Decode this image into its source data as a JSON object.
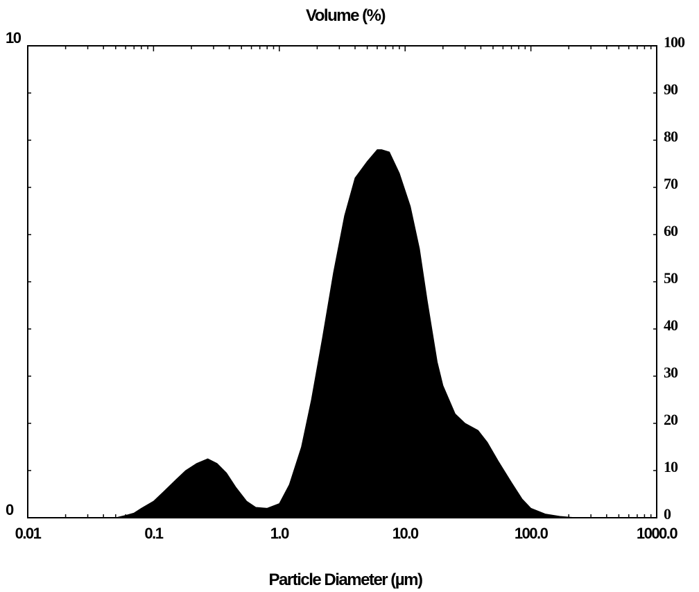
{
  "chart_data": {
    "type": "area",
    "title": "Volume (%)",
    "xlabel": "Particle Diameter (µm)",
    "ylabel": "",
    "x_scale": "log",
    "xlim": [
      0.01,
      1000
    ],
    "ylim": [
      0,
      10
    ],
    "y2lim": [
      0,
      100
    ],
    "grid": false,
    "x_tick_labels": [
      "0.01",
      "0.1",
      "1.0",
      "10.0",
      "100.0",
      "1000.0"
    ],
    "x_tick_values": [
      0.01,
      0.1,
      1,
      10,
      100,
      1000
    ],
    "y_left_labels": [
      "10",
      "0"
    ],
    "y_left_values": [
      10,
      0
    ],
    "y_right_labels": [
      "100",
      "90",
      "80",
      "70",
      "60",
      "50",
      "40",
      "30",
      "20",
      "10",
      "0"
    ],
    "y_right_values": [
      100,
      90,
      80,
      70,
      60,
      50,
      40,
      30,
      20,
      10,
      0
    ],
    "series": [
      {
        "x": [
          0.05,
          0.06,
          0.07,
          0.08,
          0.1,
          0.12,
          0.15,
          0.18,
          0.22,
          0.27,
          0.32,
          0.38,
          0.45,
          0.55,
          0.65,
          0.8,
          1.0,
          1.2,
          1.5,
          1.8,
          2.2,
          2.7,
          3.3,
          4.0,
          5.0,
          6.0,
          6.5,
          7.5,
          9.0,
          11.0,
          13.0,
          15.0,
          18.0,
          20.0,
          25.0,
          30.0,
          38.0,
          45.0,
          55.0,
          70.0,
          85.0,
          100.0,
          130.0,
          170.0,
          230.0,
          300.0
        ],
        "values": [
          0.0,
          0.05,
          0.1,
          0.2,
          0.35,
          0.55,
          0.8,
          1.0,
          1.15,
          1.25,
          1.15,
          0.95,
          0.65,
          0.35,
          0.22,
          0.2,
          0.3,
          0.7,
          1.5,
          2.5,
          3.8,
          5.2,
          6.4,
          7.2,
          7.55,
          7.8,
          7.8,
          7.75,
          7.3,
          6.6,
          5.7,
          4.6,
          3.3,
          2.8,
          2.2,
          2.0,
          1.85,
          1.6,
          1.2,
          0.75,
          0.4,
          0.2,
          0.08,
          0.03,
          0.0,
          0.0
        ]
      }
    ]
  }
}
